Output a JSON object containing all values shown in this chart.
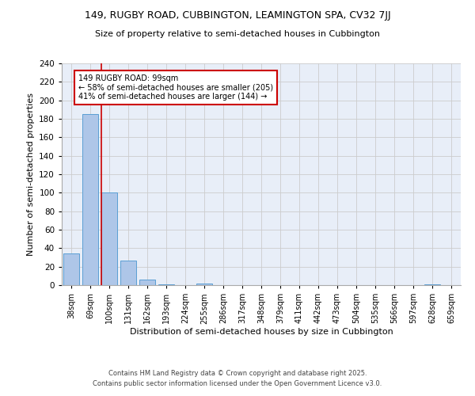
{
  "title1": "149, RUGBY ROAD, CUBBINGTON, LEAMINGTON SPA, CV32 7JJ",
  "title2": "Size of property relative to semi-detached houses in Cubbington",
  "xlabel": "Distribution of semi-detached houses by size in Cubbington",
  "ylabel": "Number of semi-detached properties",
  "categories": [
    "38sqm",
    "69sqm",
    "100sqm",
    "131sqm",
    "162sqm",
    "193sqm",
    "224sqm",
    "255sqm",
    "286sqm",
    "317sqm",
    "348sqm",
    "379sqm",
    "411sqm",
    "442sqm",
    "473sqm",
    "504sqm",
    "535sqm",
    "566sqm",
    "597sqm",
    "628sqm",
    "659sqm"
  ],
  "values": [
    34,
    185,
    100,
    27,
    6,
    1,
    0,
    2,
    0,
    0,
    0,
    0,
    0,
    0,
    0,
    0,
    0,
    0,
    0,
    1,
    0
  ],
  "bar_color": "#aec6e8",
  "bar_edge_color": "#5a9fd4",
  "vline_color": "#cc0000",
  "annotation_line1": "149 RUGBY ROAD: 99sqm",
  "annotation_line2": "← 58% of semi-detached houses are smaller (205)",
  "annotation_line3": "41% of semi-detached houses are larger (144) →",
  "annotation_box_color": "#ffffff",
  "annotation_box_edge": "#cc0000",
  "ylim": [
    0,
    240
  ],
  "yticks": [
    0,
    20,
    40,
    60,
    80,
    100,
    120,
    140,
    160,
    180,
    200,
    220,
    240
  ],
  "grid_color": "#cccccc",
  "bg_color": "#e8eef8",
  "footer1": "Contains HM Land Registry data © Crown copyright and database right 2025.",
  "footer2": "Contains public sector information licensed under the Open Government Licence v3.0."
}
